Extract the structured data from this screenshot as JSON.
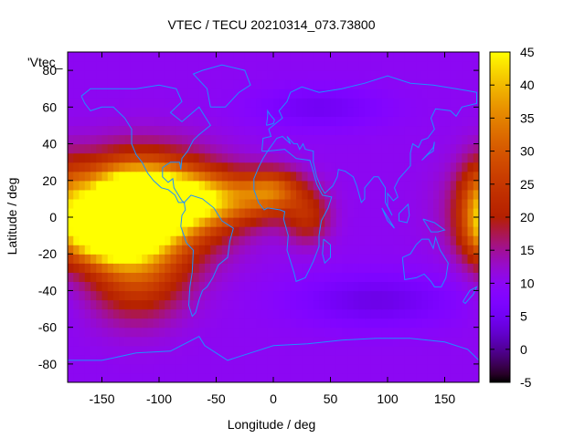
{
  "chart_data": {
    "type": "heatmap",
    "title": "VTEC / TECU 20210314_073.73800",
    "xlabel": "Longitude / deg",
    "ylabel": "Latitude / deg",
    "legend_key": "'Vtec_",
    "xlim": [
      -180,
      180
    ],
    "ylim": [
      -90,
      90
    ],
    "x_ticks": [
      -150,
      -100,
      -50,
      0,
      50,
      100,
      150
    ],
    "y_ticks": [
      -80,
      -60,
      -40,
      -20,
      0,
      20,
      40,
      60,
      80
    ],
    "colorbar": {
      "range": [
        -5,
        45
      ],
      "ticks": [
        -5,
        0,
        5,
        10,
        15,
        20,
        25,
        30,
        35,
        40,
        45
      ],
      "colormap": "gnuplot-rgbformulae-7-5-15"
    },
    "grid": false,
    "coastline_color": "#1e90ff",
    "background_level": 10,
    "features": [
      {
        "lon": -125,
        "lat": 8,
        "value": 43,
        "sigma_lon": 35,
        "sigma_lat": 14
      },
      {
        "lon": -145,
        "lat": -10,
        "value": 38,
        "sigma_lon": 25,
        "sigma_lat": 10
      },
      {
        "lon": -110,
        "lat": 5,
        "value": 36,
        "sigma_lon": 45,
        "sigma_lat": 20
      },
      {
        "lon": -120,
        "lat": -30,
        "value": 26,
        "sigma_lon": 30,
        "sigma_lat": 18
      },
      {
        "lon": -55,
        "lat": 10,
        "value": 31,
        "sigma_lon": 40,
        "sigma_lat": 10
      },
      {
        "lon": 0,
        "lat": 15,
        "value": 26,
        "sigma_lon": 18,
        "sigma_lat": 8
      },
      {
        "lon": 30,
        "lat": 0,
        "value": 21,
        "sigma_lon": 14,
        "sigma_lat": 10
      },
      {
        "lon": 180,
        "lat": 5,
        "value": 22,
        "sigma_lon": 12,
        "sigma_lat": 18
      },
      {
        "lon": 90,
        "lat": -45,
        "value": 4,
        "sigma_lon": 50,
        "sigma_lat": 10
      },
      {
        "lon": 40,
        "lat": 60,
        "value": 5,
        "sigma_lon": 40,
        "sigma_lat": 8
      }
    ]
  }
}
